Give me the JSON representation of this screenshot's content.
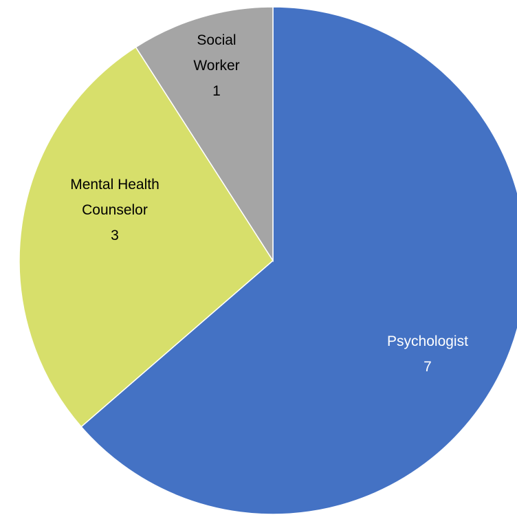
{
  "chart_data": {
    "type": "pie",
    "categories": [
      "Psychologist",
      "Mental Health Counselor",
      "Social Worker"
    ],
    "values": [
      7,
      3,
      1
    ],
    "colors": [
      "#4472c4",
      "#d7df6b",
      "#a5a5a5"
    ],
    "label_colors": [
      "#ffffff",
      "#000000",
      "#000000"
    ]
  }
}
